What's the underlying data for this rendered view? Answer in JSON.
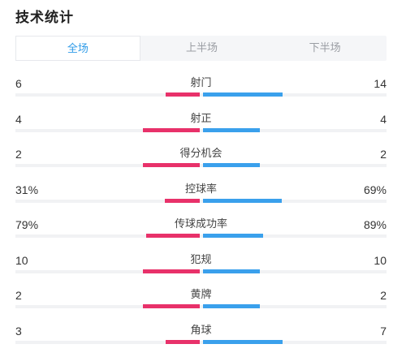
{
  "title": "技术统计",
  "tabs": [
    {
      "label": "全场",
      "active": true
    },
    {
      "label": "上半场",
      "active": false
    },
    {
      "label": "下半场",
      "active": false
    }
  ],
  "colors": {
    "home": "#e8316a",
    "away": "#3aa0ec",
    "active_tab": "#2f9be8"
  },
  "stats": [
    {
      "label": "射门",
      "home": "6",
      "away": "14",
      "home_share": 0.3,
      "away_share": 0.7
    },
    {
      "label": "射正",
      "home": "4",
      "away": "4",
      "home_share": 0.5,
      "away_share": 0.5
    },
    {
      "label": "得分机会",
      "home": "2",
      "away": "2",
      "home_share": 0.5,
      "away_share": 0.5
    },
    {
      "label": "控球率",
      "home": "31%",
      "away": "69%",
      "home_share": 0.31,
      "away_share": 0.69
    },
    {
      "label": "传球成功率",
      "home": "79%",
      "away": "89%",
      "home_share": 0.47,
      "away_share": 0.53
    },
    {
      "label": "犯规",
      "home": "10",
      "away": "10",
      "home_share": 0.5,
      "away_share": 0.5
    },
    {
      "label": "黄牌",
      "home": "2",
      "away": "2",
      "home_share": 0.5,
      "away_share": 0.5
    },
    {
      "label": "角球",
      "home": "3",
      "away": "7",
      "home_share": 0.3,
      "away_share": 0.7
    }
  ]
}
